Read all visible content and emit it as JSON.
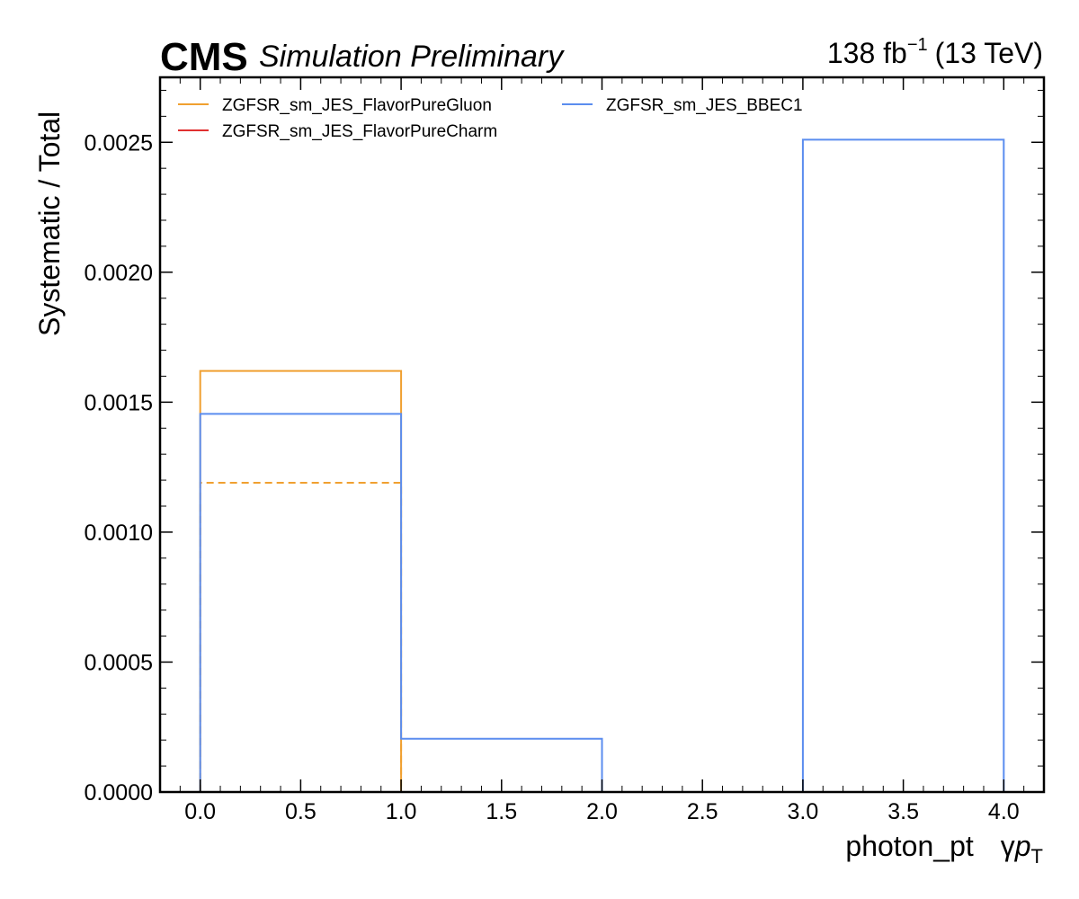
{
  "header": {
    "experiment": "CMS",
    "extra": "Simulation Preliminary",
    "lumi_value": "138 fb",
    "lumi_exp": "−1",
    "lumi_energy": "(13 TeV)"
  },
  "chart_data": {
    "type": "line",
    "style": "step-histogram",
    "xlabel": "photon_pt",
    "xlabel_symbol": "γ",
    "xlabel_var": "p",
    "xlabel_sub": "T",
    "ylabel": "Systematic / Total",
    "xlim": [
      -0.2,
      4.2
    ],
    "ylim": [
      0,
      0.00275
    ],
    "x_ticks": [
      "0.0",
      "0.5",
      "1.0",
      "1.5",
      "2.0",
      "2.5",
      "3.0",
      "3.5",
      "4.0"
    ],
    "y_ticks": [
      "0.0000",
      "0.0005",
      "0.0010",
      "0.0015",
      "0.0020",
      "0.0025"
    ],
    "bin_edges": [
      0,
      1,
      2,
      3,
      4
    ],
    "series": [
      {
        "name": "ZGFSR_sm_JES_FlavorPureGluon",
        "color": "#f0a030",
        "dash": "solid",
        "values": [
          0.00162,
          0,
          0,
          0
        ]
      },
      {
        "name": "ZGFSR_sm_JES_FlavorPureGluon",
        "color": "#f0a030",
        "dash": "dashed",
        "values": [
          0.00119,
          0,
          0,
          0
        ],
        "in_legend": false
      },
      {
        "name": "ZGFSR_sm_JES_FlavorPureCharm",
        "color": "#e03030",
        "dash": "solid",
        "values": [
          0,
          0,
          0,
          0
        ]
      },
      {
        "name": "ZGFSR_sm_JES_BBEC1",
        "color": "#5b8def",
        "dash": "solid",
        "values": [
          0.001455,
          0.000205,
          0,
          0.00251
        ]
      }
    ],
    "legend": {
      "placement": "top-left",
      "entries": [
        {
          "label": "ZGFSR_sm_JES_FlavorPureGluon",
          "color": "#f0a030"
        },
        {
          "label": "ZGFSR_sm_JES_FlavorPureCharm",
          "color": "#e03030"
        },
        {
          "label": "ZGFSR_sm_JES_BBEC1",
          "color": "#5b8def"
        }
      ]
    },
    "grid": false
  }
}
